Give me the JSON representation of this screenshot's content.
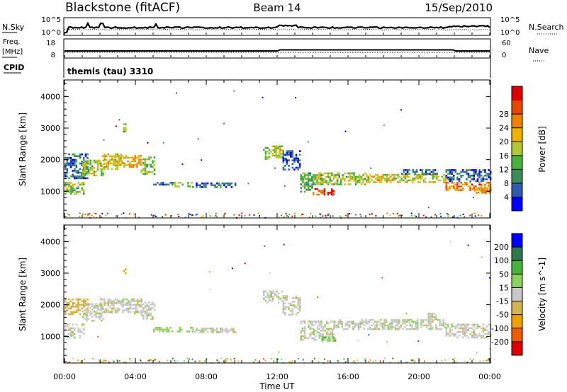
{
  "header": {
    "radar": "Blackstone (fitACF)",
    "beam": "Beam 14",
    "date": "15/Sep/2010"
  },
  "strips": {
    "nsky_label": "N.Sky",
    "nsearch_label": "N.Search",
    "nsky_ticks": [
      "10^5",
      "10^0"
    ],
    "nsearch_ticks": [
      "10^5",
      "10^0"
    ],
    "freq_label": "Freq.",
    "freq_unit": "[MHz]",
    "freq_ticks": [
      "18",
      "8"
    ],
    "nave_label": "Nave",
    "nave_ticks": [
      "60",
      "0"
    ],
    "cpid_label": "CPID",
    "cpid_value": "themis (tau) 3310"
  },
  "colors": {
    "power_scale": [
      "#0000ff",
      "#2e5ab4",
      "#3c8c5a",
      "#46b43c",
      "#b4c832",
      "#f0b400",
      "#f08200",
      "#e64600",
      "#dc0000"
    ],
    "velocity_scale": [
      "#dc0000",
      "#f05a00",
      "#f0a000",
      "#d2b450",
      "#c8c8c8",
      "#8cd25a",
      "#46b43c",
      "#2e7850",
      "#0000ff"
    ],
    "ground_scatter": "#c8c8c8"
  },
  "chart_data": [
    {
      "type": "heatmap",
      "name": "power",
      "ylabel": "Slant Range [km]",
      "yticks": [
        "1000",
        "2000",
        "3000",
        "4000"
      ],
      "ylim": [
        180,
        4500
      ],
      "colorbar_label": "Power [dB]",
      "colorbar_ticks": [
        "4",
        "8",
        "12",
        "16",
        "20",
        "24",
        "28"
      ],
      "colorbar_range": [
        0,
        30
      ],
      "xlim": [
        0,
        24
      ],
      "bands": [
        {
          "t0": 0.0,
          "t1": 1.1,
          "r0": 950,
          "r1": 1300,
          "p": 14
        },
        {
          "t0": 0.0,
          "t1": 1.3,
          "r0": 1400,
          "r1": 2200,
          "p": 6
        },
        {
          "t0": 1.0,
          "t1": 2.2,
          "r0": 1500,
          "r1": 2000,
          "p": 14
        },
        {
          "t0": 2.0,
          "t1": 3.2,
          "r0": 1700,
          "r1": 2200,
          "p": 17
        },
        {
          "t0": 2.8,
          "t1": 4.3,
          "r0": 1750,
          "r1": 2150,
          "p": 18
        },
        {
          "t0": 3.3,
          "t1": 3.5,
          "r0": 2900,
          "r1": 3150,
          "p": 12
        },
        {
          "t0": 4.3,
          "t1": 5.1,
          "r0": 1550,
          "r1": 2100,
          "p": 13
        },
        {
          "t0": 5.0,
          "t1": 6.2,
          "r0": 1200,
          "r1": 1300,
          "p": 6
        },
        {
          "t0": 6.2,
          "t1": 7.2,
          "r0": 1150,
          "r1": 1300,
          "p": 14
        },
        {
          "t0": 7.2,
          "t1": 9.6,
          "r0": 1150,
          "r1": 1280,
          "p": 6
        },
        {
          "t0": 11.2,
          "t1": 11.7,
          "r0": 2050,
          "r1": 2400,
          "p": 12
        },
        {
          "t0": 11.7,
          "t1": 12.3,
          "r0": 2100,
          "r1": 2450,
          "p": 16
        },
        {
          "t0": 12.3,
          "t1": 13.3,
          "r0": 1700,
          "r1": 2300,
          "p": 5
        },
        {
          "t0": 13.3,
          "t1": 14.0,
          "r0": 1000,
          "r1": 1600,
          "p": 10
        },
        {
          "t0": 14.0,
          "t1": 15.2,
          "r0": 880,
          "r1": 1100,
          "p": 25
        },
        {
          "t0": 14.0,
          "t1": 17.0,
          "r0": 1200,
          "r1": 1600,
          "p": 14
        },
        {
          "t0": 17.0,
          "t1": 21.5,
          "r0": 1300,
          "r1": 1550,
          "p": 17
        },
        {
          "t0": 19.0,
          "t1": 21.0,
          "r0": 1550,
          "r1": 1700,
          "p": 6
        },
        {
          "t0": 21.5,
          "t1": 24.0,
          "r0": 1050,
          "r1": 1300,
          "p": 22
        },
        {
          "t0": 21.5,
          "t1": 24.0,
          "r0": 1300,
          "r1": 1700,
          "p": 6
        },
        {
          "t0": 23.0,
          "t1": 24.0,
          "r0": 930,
          "r1": 1100,
          "p": 21
        }
      ]
    },
    {
      "type": "heatmap",
      "name": "velocity",
      "ylabel": "Slant Range [km]",
      "yticks": [
        "1000",
        "2000",
        "3000",
        "4000"
      ],
      "ylim": [
        180,
        4500
      ],
      "colorbar_label": "Velocity [m s^-1]",
      "colorbar_ticks": [
        "200",
        "100",
        "50",
        "15",
        "-15",
        "-50",
        "-100",
        "-200"
      ],
      "colorbar_range": [
        -250,
        250
      ],
      "xlim": [
        0,
        24
      ],
      "xticks": [
        "00:00",
        "04:00",
        "08:00",
        "12:00",
        "16:00",
        "20:00",
        "00:00"
      ],
      "xlabel": "Time UT",
      "bands": [
        {
          "t0": 0.0,
          "t1": 1.1,
          "r0": 950,
          "r1": 1400,
          "v": 0
        },
        {
          "t0": 0.0,
          "t1": 1.3,
          "r0": 1700,
          "r1": 2200,
          "v": -40
        },
        {
          "t0": 1.0,
          "t1": 2.2,
          "r0": 1500,
          "r1": 2050,
          "v": 0
        },
        {
          "t0": 2.0,
          "t1": 4.3,
          "r0": 1750,
          "r1": 2200,
          "v": 0
        },
        {
          "t0": 4.3,
          "t1": 5.1,
          "r0": 1550,
          "r1": 2100,
          "v": 0
        },
        {
          "t0": 3.3,
          "t1": 3.5,
          "r0": 3000,
          "r1": 3150,
          "v": -60
        },
        {
          "t0": 5.0,
          "t1": 7.2,
          "r0": 1150,
          "r1": 1300,
          "v": 30
        },
        {
          "t0": 7.2,
          "t1": 9.6,
          "r0": 1150,
          "r1": 1280,
          "v": 0
        },
        {
          "t0": 11.2,
          "t1": 12.3,
          "r0": 2050,
          "r1": 2450,
          "v": 0
        },
        {
          "t0": 12.3,
          "t1": 13.3,
          "r0": 1700,
          "r1": 2300,
          "v": 0
        },
        {
          "t0": 13.3,
          "t1": 15.2,
          "r0": 880,
          "r1": 1500,
          "v": 0
        },
        {
          "t0": 14.5,
          "t1": 15.3,
          "r0": 850,
          "r1": 1000,
          "v": 40
        },
        {
          "t0": 15.2,
          "t1": 21.5,
          "r0": 1250,
          "r1": 1550,
          "v": 0
        },
        {
          "t0": 21.5,
          "t1": 24.0,
          "r0": 950,
          "r1": 1400,
          "v": 0
        },
        {
          "t0": 20.5,
          "t1": 21.0,
          "r0": 1550,
          "r1": 1750,
          "v": 0
        }
      ]
    }
  ]
}
